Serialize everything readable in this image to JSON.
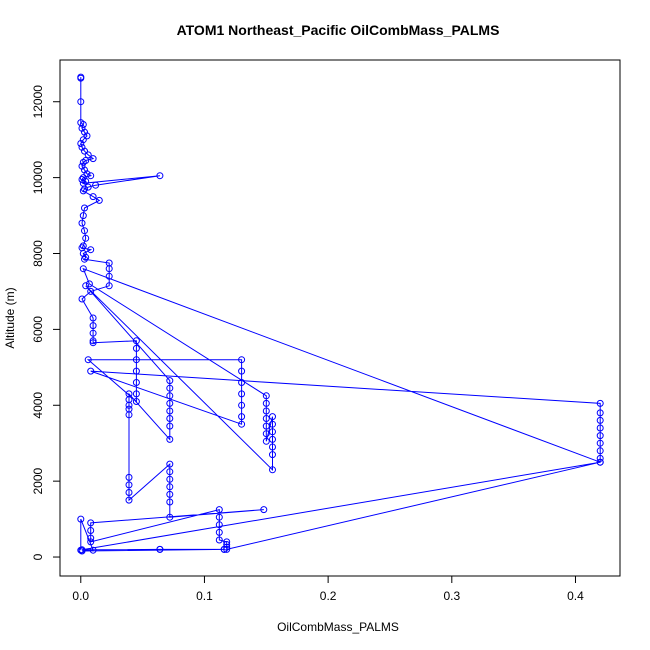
{
  "chart_data": {
    "type": "scatter",
    "title": "ATOM1 Northeast_Pacific OilCombMass_PALMS",
    "xlabel": "OilCombMass_PALMS",
    "ylabel": "Altitude (m)",
    "xlim": [
      -0.0168,
      0.436
    ],
    "ylim": [
      -500,
      13100
    ],
    "xticks": [
      0.0,
      0.1,
      0.2,
      0.3,
      0.4
    ],
    "xtick_labels": [
      "0.0",
      "0.1",
      "0.2",
      "0.3",
      "0.4"
    ],
    "yticks": [
      0,
      2000,
      4000,
      6000,
      8000,
      10000,
      12000
    ],
    "ytick_labels": [
      "0",
      "2000",
      "4000",
      "6000",
      "8000",
      "10000",
      "12000"
    ],
    "grid": false,
    "legend": "none",
    "color": "#0000ff",
    "marker": "open-circle",
    "connected": true,
    "x": [
      0.0,
      0.0,
      0.0,
      0.0,
      0.002,
      0.001,
      0.003,
      0.005,
      0.002,
      0.0,
      0.001,
      0.003,
      0.006,
      0.01,
      0.004,
      0.002,
      0.001,
      0.003,
      0.005,
      0.008,
      0.002,
      0.001,
      0.004,
      0.002,
      0.064,
      0.012,
      0.006,
      0.003,
      0.002,
      0.01,
      0.015,
      0.003,
      0.002,
      0.001,
      0.003,
      0.004,
      0.002,
      0.001,
      0.008,
      0.002,
      0.004,
      0.003,
      0.023,
      0.023,
      0.023,
      0.023,
      0.008,
      0.001,
      0.01,
      0.01,
      0.01,
      0.01,
      0.01,
      0.045,
      0.045,
      0.045,
      0.045,
      0.045,
      0.045,
      0.045,
      0.006,
      0.13,
      0.13,
      0.13,
      0.13,
      0.13,
      0.13,
      0.13,
      0.008,
      0.42,
      0.42,
      0.42,
      0.42,
      0.42,
      0.42,
      0.42,
      0.42,
      0.42,
      0.002,
      0.007,
      0.15,
      0.15,
      0.15,
      0.15,
      0.15,
      0.15,
      0.15,
      0.155,
      0.155,
      0.155,
      0.155,
      0.155,
      0.155,
      0.155,
      0.004,
      0.072,
      0.072,
      0.072,
      0.072,
      0.072,
      0.072,
      0.072,
      0.072,
      0.039,
      0.039,
      0.039,
      0.039,
      0.039,
      0.039,
      0.039,
      0.039,
      0.039,
      0.072,
      0.072,
      0.072,
      0.072,
      0.072,
      0.072,
      0.072,
      0.148,
      0.008,
      0.008,
      0.008,
      0.008,
      0.112,
      0.112,
      0.112,
      0.112,
      0.112,
      0.118,
      0.118,
      0.118,
      0.118,
      0.42,
      0.001,
      0.064,
      0.064,
      0.116,
      0.116,
      0.001,
      0.01,
      0.0,
      0.0
    ],
    "y": [
      12650,
      12620,
      12000,
      11450,
      11400,
      11300,
      11200,
      11100,
      11000,
      10900,
      10800,
      10700,
      10600,
      10500,
      10450,
      10400,
      10300,
      10200,
      10100,
      10050,
      10000,
      9950,
      9900,
      9850,
      10050,
      9800,
      9750,
      9700,
      9650,
      9500,
      9400,
      9200,
      9000,
      8800,
      8600,
      8400,
      8200,
      8150,
      8100,
      8000,
      7900,
      7850,
      7750,
      7600,
      7400,
      7150,
      7000,
      6800,
      6300,
      6100,
      5900,
      5700,
      5650,
      5700,
      5500,
      5200,
      4900,
      4600,
      4300,
      4100,
      5200,
      5200,
      4900,
      4600,
      4300,
      4000,
      3700,
      3500,
      4900,
      4050,
      3800,
      3600,
      3400,
      3200,
      3000,
      2800,
      2600,
      2500,
      7600,
      7200,
      4250,
      4050,
      3850,
      3650,
      3450,
      3250,
      3050,
      3700,
      3500,
      3300,
      3100,
      2900,
      2700,
      2300,
      7150,
      4650,
      4450,
      4250,
      4050,
      3850,
      3650,
      3450,
      3100,
      4300,
      4150,
      4000,
      3900,
      3750,
      2100,
      1900,
      1700,
      1500,
      2450,
      2250,
      2050,
      1850,
      1650,
      1450,
      1050,
      1250,
      900,
      700,
      500,
      400,
      1250,
      1050,
      850,
      650,
      450,
      400,
      330,
      260,
      200,
      2500,
      190,
      200,
      200,
      200,
      200,
      160,
      180,
      1000,
      180
    ]
  }
}
